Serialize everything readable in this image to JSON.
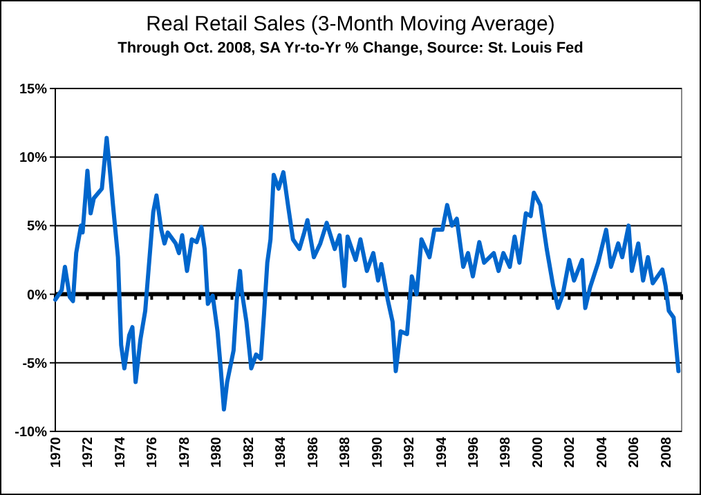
{
  "chart_data": {
    "type": "line",
    "title": "Real Retail Sales (3-Month Moving Average)",
    "subtitle": "Through Oct. 2008, SA Yr-to-Yr % Change, Source: St. Louis Fed",
    "xlim": [
      1970,
      2009
    ],
    "xticks": [
      1970,
      1972,
      1974,
      1976,
      1978,
      1980,
      1982,
      1984,
      1986,
      1988,
      1990,
      1992,
      1994,
      1996,
      1998,
      2000,
      2002,
      2004,
      2006,
      2008
    ],
    "ylim": [
      -10,
      15
    ],
    "yticks": [
      {
        "value": -10,
        "label": "-10%"
      },
      {
        "value": -5,
        "label": "-5%"
      },
      {
        "value": 0,
        "label": "0%"
      },
      {
        "value": 5,
        "label": "5%"
      },
      {
        "value": 10,
        "label": "10%"
      },
      {
        "value": 15,
        "label": "15%"
      }
    ],
    "grid": "y",
    "series": [
      {
        "color": "#0066cc",
        "x": [
          1970.0,
          1970.4,
          1970.6,
          1970.9,
          1971.1,
          1971.3,
          1971.6,
          1971.7,
          1972.0,
          1972.2,
          1972.4,
          1972.9,
          1973.2,
          1973.4,
          1973.6,
          1973.9,
          1974.1,
          1974.3,
          1974.6,
          1974.8,
          1975.0,
          1975.3,
          1975.6,
          1975.8,
          1976.1,
          1976.3,
          1976.6,
          1976.8,
          1977.0,
          1977.5,
          1977.7,
          1977.9,
          1978.2,
          1978.5,
          1978.8,
          1979.1,
          1979.3,
          1979.5,
          1979.8,
          1980.1,
          1980.3,
          1980.5,
          1980.7,
          1981.1,
          1981.3,
          1981.5,
          1981.6,
          1981.9,
          1982.2,
          1982.5,
          1982.8,
          1983.0,
          1983.2,
          1983.4,
          1983.6,
          1983.9,
          1984.2,
          1984.5,
          1984.8,
          1985.2,
          1985.5,
          1985.7,
          1986.1,
          1986.5,
          1986.9,
          1987.4,
          1987.7,
          1988.0,
          1988.2,
          1988.7,
          1989.0,
          1989.4,
          1989.8,
          1990.1,
          1990.3,
          1990.7,
          1991.0,
          1991.2,
          1991.5,
          1991.9,
          1992.2,
          1992.5,
          1992.8,
          1993.3,
          1993.6,
          1994.1,
          1994.4,
          1994.7,
          1995.0,
          1995.4,
          1995.7,
          1996.0,
          1996.4,
          1996.7,
          1997.3,
          1997.6,
          1997.9,
          1998.3,
          1998.6,
          1998.9,
          1999.3,
          1999.6,
          1999.8,
          2000.2,
          2000.6,
          2001.0,
          2001.3,
          2001.6,
          2002.0,
          2002.3,
          2002.8,
          2003.0,
          2003.3,
          2003.8,
          2004.05,
          2004.3,
          2004.6,
          2005.05,
          2005.3,
          2005.7,
          2005.9,
          2006.3,
          2006.6,
          2006.9,
          2007.2,
          2007.8,
          2008.0,
          2008.2,
          2008.5,
          2008.65,
          2008.8
        ],
        "values": [
          -0.4,
          0.3,
          2.0,
          -0.2,
          -0.5,
          3.0,
          5.0,
          4.5,
          9.0,
          5.9,
          7.0,
          7.7,
          11.4,
          9.0,
          6.4,
          2.7,
          -3.7,
          -5.4,
          -3.0,
          -2.4,
          -6.4,
          -3.3,
          -1.2,
          1.7,
          6.0,
          7.2,
          4.7,
          3.7,
          4.5,
          3.7,
          3.0,
          4.3,
          1.7,
          4.0,
          3.8,
          4.9,
          3.3,
          -0.7,
          -0.1,
          -2.7,
          -5.4,
          -8.4,
          -6.4,
          -4.1,
          -0.4,
          1.7,
          0.3,
          -2.0,
          -5.4,
          -4.4,
          -4.7,
          -1.4,
          2.3,
          4.0,
          8.7,
          7.7,
          8.9,
          6.4,
          4.0,
          3.3,
          4.5,
          5.4,
          2.7,
          3.7,
          5.2,
          3.3,
          4.3,
          0.6,
          4.2,
          2.5,
          4.0,
          1.7,
          3.0,
          1.0,
          2.2,
          -0.4,
          -2.0,
          -5.6,
          -2.7,
          -2.9,
          1.3,
          0.0,
          4.0,
          2.7,
          4.7,
          4.7,
          6.5,
          5.0,
          5.5,
          2.0,
          3.0,
          1.3,
          3.8,
          2.3,
          3.0,
          1.7,
          3.0,
          2.0,
          4.2,
          2.3,
          5.9,
          5.7,
          7.4,
          6.5,
          3.3,
          0.6,
          -1.0,
          0.0,
          2.5,
          1.0,
          2.5,
          -1.0,
          0.5,
          2.3,
          3.5,
          4.7,
          2.0,
          3.7,
          2.7,
          5.0,
          1.7,
          3.7,
          1.0,
          2.7,
          0.8,
          1.8,
          0.6,
          -1.2,
          -1.7,
          -3.7,
          -5.6
        ]
      }
    ]
  }
}
